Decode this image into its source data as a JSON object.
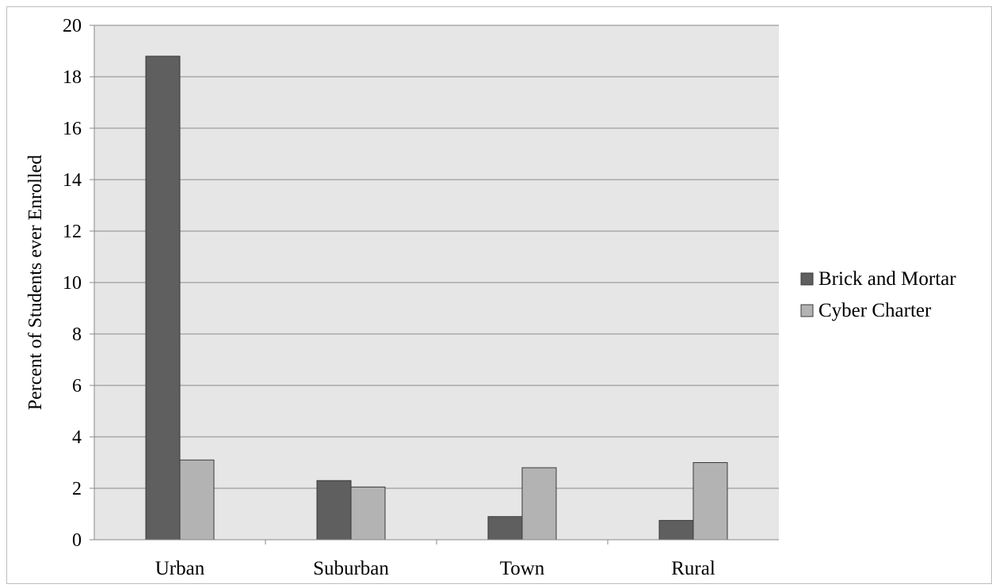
{
  "chart_data": {
    "type": "bar",
    "categories": [
      "Urban",
      "Suburban",
      "Town",
      "Rural"
    ],
    "series": [
      {
        "name": "Brick and Mortar",
        "values": [
          18.8,
          2.3,
          0.9,
          0.75
        ],
        "color": "#5f5f5f"
      },
      {
        "name": "Cyber Charter",
        "values": [
          3.1,
          2.05,
          2.8,
          3.0
        ],
        "color": "#b3b3b3"
      }
    ],
    "title": "",
    "xlabel": "",
    "ylabel": "Percent of Students ever Enrolled",
    "ylim": [
      0,
      20
    ],
    "yticks": [
      "0",
      "2",
      "4",
      "6",
      "8",
      "10",
      "12",
      "14",
      "16",
      "18",
      "20"
    ],
    "grid": true,
    "legend": "right",
    "plot_background": "#e6e6e6",
    "gridline_color": "#8a8a8a"
  }
}
